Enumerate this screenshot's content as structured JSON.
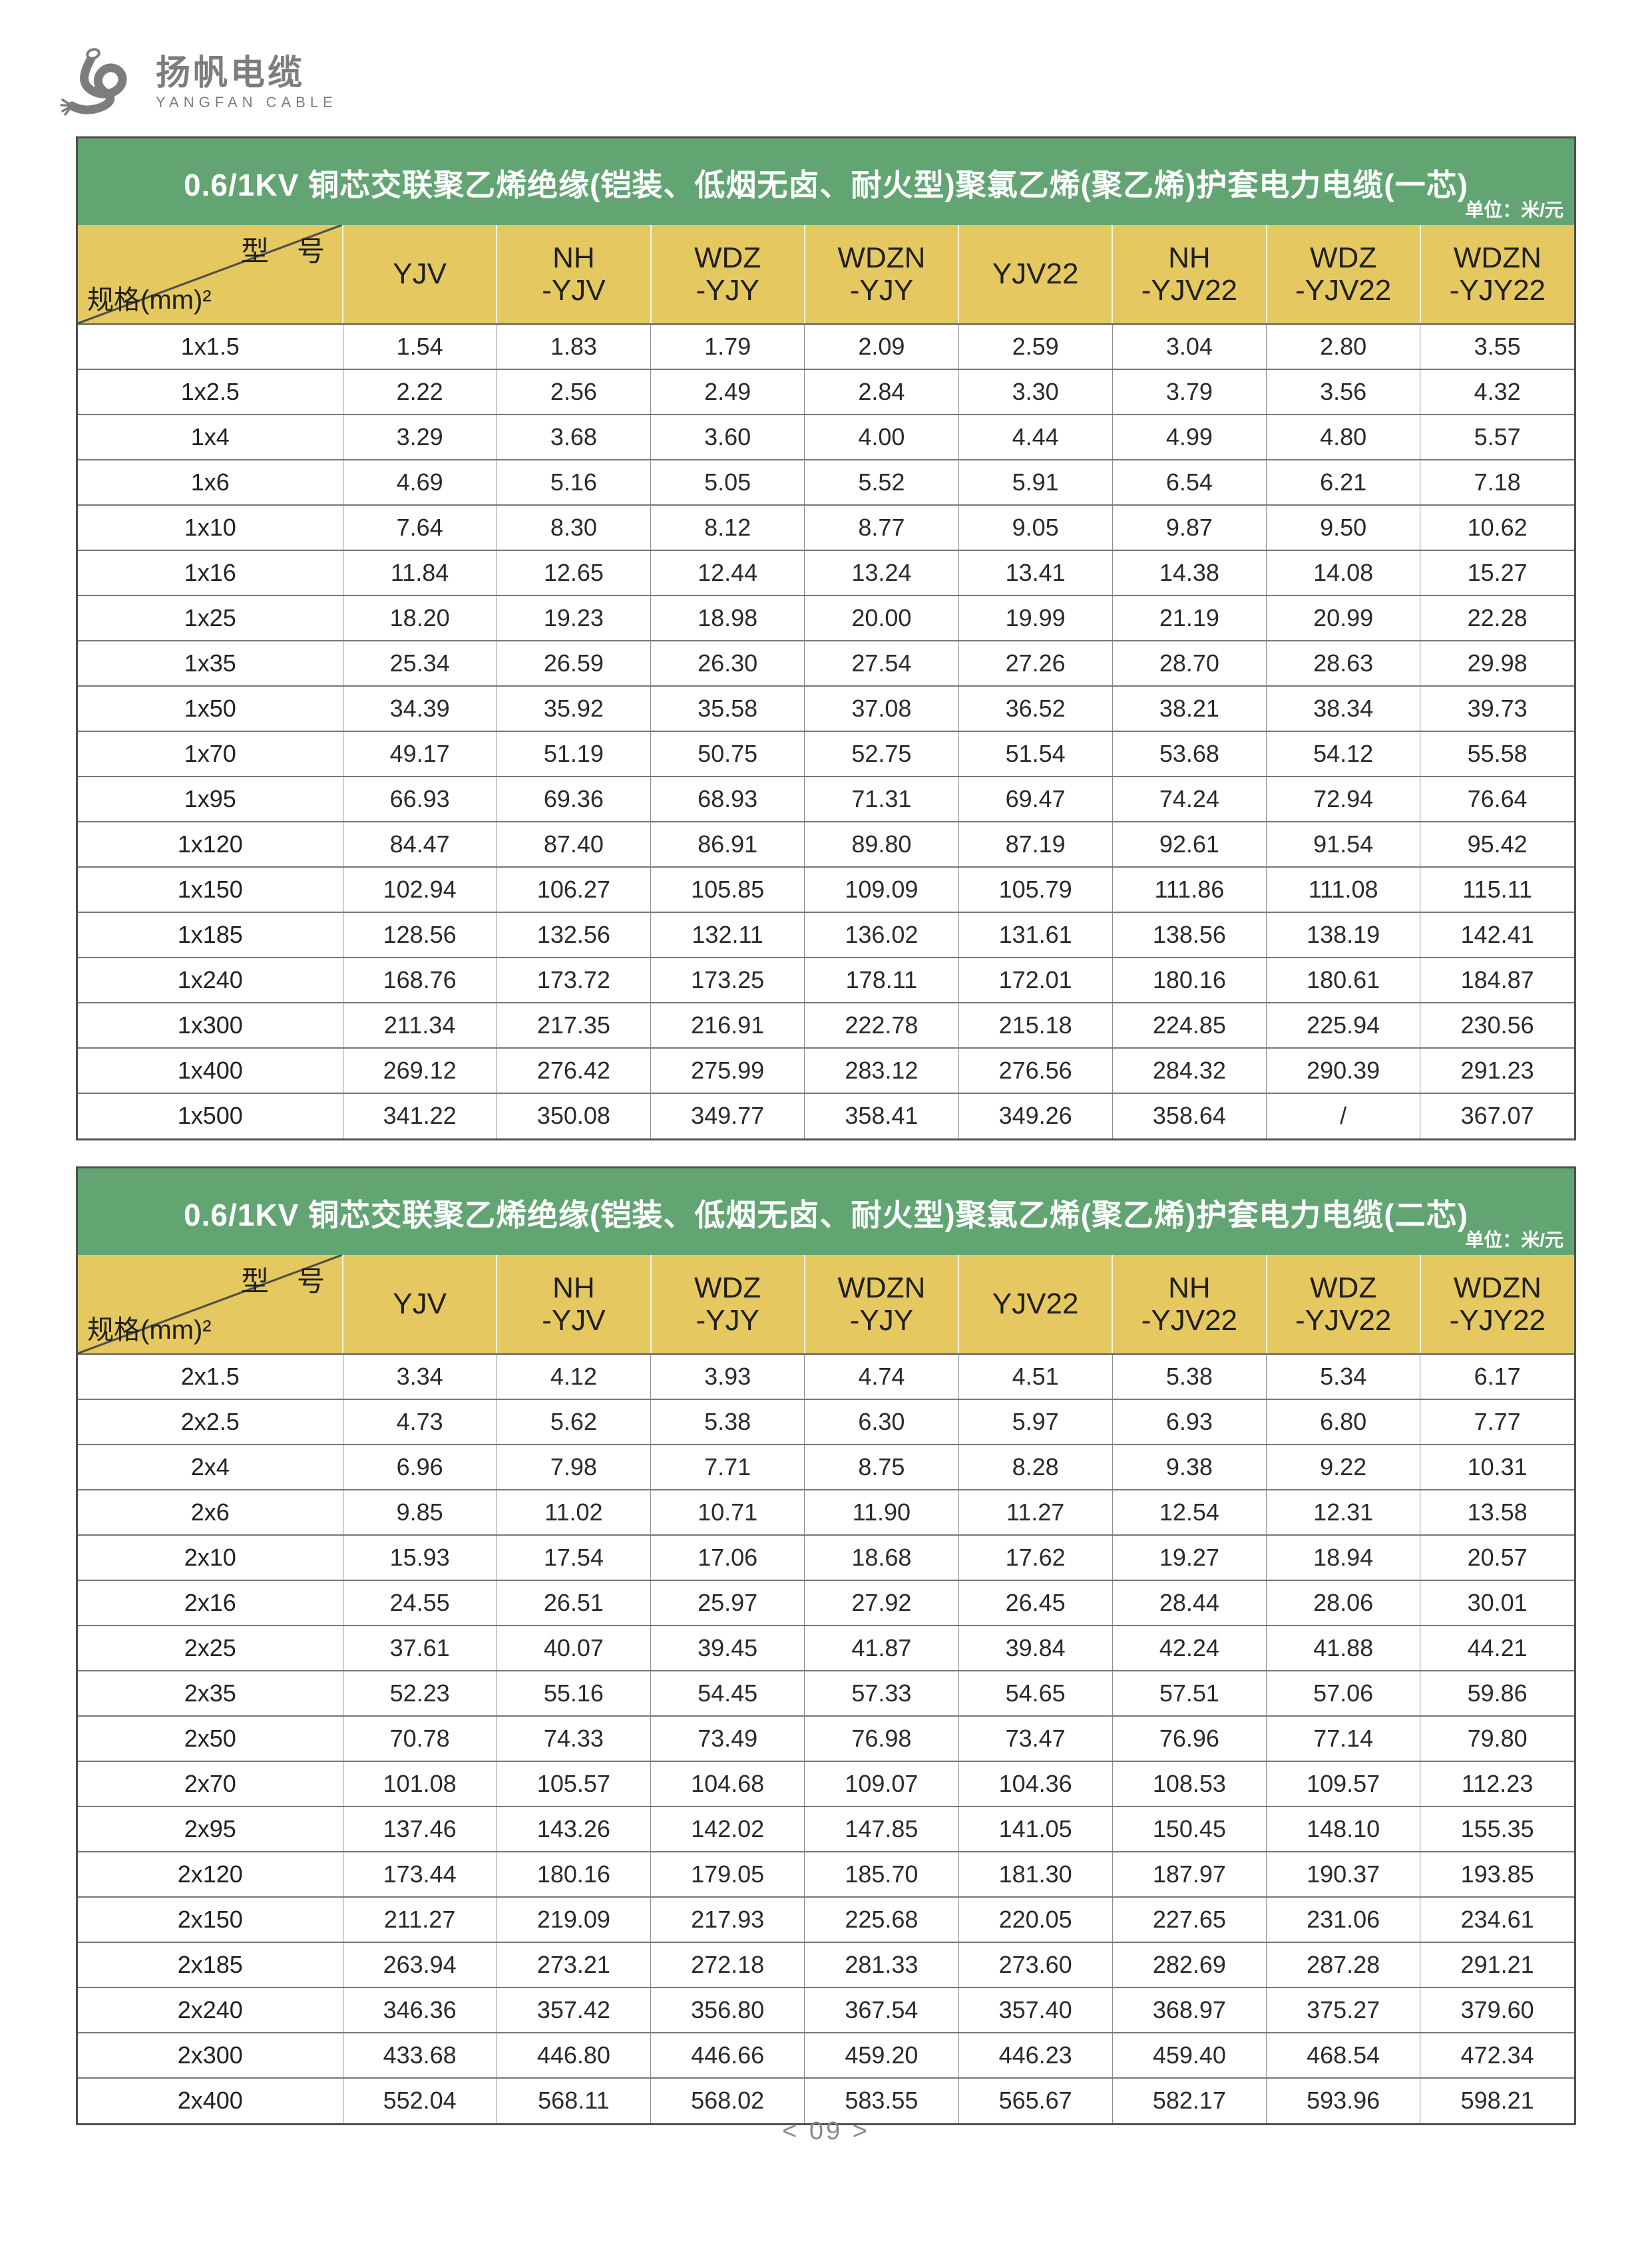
{
  "logo": {
    "brand_cn": "扬帆电缆",
    "brand_en": "YANGFAN CABLE"
  },
  "footer": {
    "page": "< 09 >"
  },
  "colors": {
    "band_green": "#62a573",
    "header_yellow": "#e5c860",
    "logo_gray": "#7d7d7d"
  },
  "tables": [
    {
      "title": "0.6/1KV 铜芯交联聚乙烯绝缘(铠装、低烟无卤、耐火型)聚氯乙烯(聚乙烯)护套电力电缆(一芯)",
      "unit": "单位：米/元",
      "corner_top": "型　号",
      "corner_bottom": "规格(mm)²",
      "columns": [
        "YJV",
        "NH\n-YJV",
        "WDZ\n-YJY",
        "WDZN\n-YJY",
        "YJV22",
        "NH\n-YJV22",
        "WDZ\n-YJV22",
        "WDZN\n-YJY22"
      ],
      "rows": [
        {
          "spec": "1x1.5",
          "values": [
            "1.54",
            "1.83",
            "1.79",
            "2.09",
            "2.59",
            "3.04",
            "2.80",
            "3.55"
          ]
        },
        {
          "spec": "1x2.5",
          "values": [
            "2.22",
            "2.56",
            "2.49",
            "2.84",
            "3.30",
            "3.79",
            "3.56",
            "4.32"
          ]
        },
        {
          "spec": "1x4",
          "values": [
            "3.29",
            "3.68",
            "3.60",
            "4.00",
            "4.44",
            "4.99",
            "4.80",
            "5.57"
          ]
        },
        {
          "spec": "1x6",
          "values": [
            "4.69",
            "5.16",
            "5.05",
            "5.52",
            "5.91",
            "6.54",
            "6.21",
            "7.18"
          ]
        },
        {
          "spec": "1x10",
          "values": [
            "7.64",
            "8.30",
            "8.12",
            "8.77",
            "9.05",
            "9.87",
            "9.50",
            "10.62"
          ]
        },
        {
          "spec": "1x16",
          "values": [
            "11.84",
            "12.65",
            "12.44",
            "13.24",
            "13.41",
            "14.38",
            "14.08",
            "15.27"
          ]
        },
        {
          "spec": "1x25",
          "values": [
            "18.20",
            "19.23",
            "18.98",
            "20.00",
            "19.99",
            "21.19",
            "20.99",
            "22.28"
          ]
        },
        {
          "spec": "1x35",
          "values": [
            "25.34",
            "26.59",
            "26.30",
            "27.54",
            "27.26",
            "28.70",
            "28.63",
            "29.98"
          ]
        },
        {
          "spec": "1x50",
          "values": [
            "34.39",
            "35.92",
            "35.58",
            "37.08",
            "36.52",
            "38.21",
            "38.34",
            "39.73"
          ]
        },
        {
          "spec": "1x70",
          "values": [
            "49.17",
            "51.19",
            "50.75",
            "52.75",
            "51.54",
            "53.68",
            "54.12",
            "55.58"
          ]
        },
        {
          "spec": "1x95",
          "values": [
            "66.93",
            "69.36",
            "68.93",
            "71.31",
            "69.47",
            "74.24",
            "72.94",
            "76.64"
          ]
        },
        {
          "spec": "1x120",
          "values": [
            "84.47",
            "87.40",
            "86.91",
            "89.80",
            "87.19",
            "92.61",
            "91.54",
            "95.42"
          ]
        },
        {
          "spec": "1x150",
          "values": [
            "102.94",
            "106.27",
            "105.85",
            "109.09",
            "105.79",
            "111.86",
            "111.08",
            "115.11"
          ]
        },
        {
          "spec": "1x185",
          "values": [
            "128.56",
            "132.56",
            "132.11",
            "136.02",
            "131.61",
            "138.56",
            "138.19",
            "142.41"
          ]
        },
        {
          "spec": "1x240",
          "values": [
            "168.76",
            "173.72",
            "173.25",
            "178.11",
            "172.01",
            "180.16",
            "180.61",
            "184.87"
          ]
        },
        {
          "spec": "1x300",
          "values": [
            "211.34",
            "217.35",
            "216.91",
            "222.78",
            "215.18",
            "224.85",
            "225.94",
            "230.56"
          ]
        },
        {
          "spec": "1x400",
          "values": [
            "269.12",
            "276.42",
            "275.99",
            "283.12",
            "276.56",
            "284.32",
            "290.39",
            "291.23"
          ]
        },
        {
          "spec": "1x500",
          "values": [
            "341.22",
            "350.08",
            "349.77",
            "358.41",
            "349.26",
            "358.64",
            "/",
            "367.07"
          ]
        }
      ]
    },
    {
      "title": "0.6/1KV 铜芯交联聚乙烯绝缘(铠装、低烟无卤、耐火型)聚氯乙烯(聚乙烯)护套电力电缆(二芯)",
      "unit": "单位：米/元",
      "corner_top": "型　号",
      "corner_bottom": "规格(mm)²",
      "columns": [
        "YJV",
        "NH\n-YJV",
        "WDZ\n-YJY",
        "WDZN\n-YJY",
        "YJV22",
        "NH\n-YJV22",
        "WDZ\n-YJV22",
        "WDZN\n-YJY22"
      ],
      "rows": [
        {
          "spec": "2x1.5",
          "values": [
            "3.34",
            "4.12",
            "3.93",
            "4.74",
            "4.51",
            "5.38",
            "5.34",
            "6.17"
          ]
        },
        {
          "spec": "2x2.5",
          "values": [
            "4.73",
            "5.62",
            "5.38",
            "6.30",
            "5.97",
            "6.93",
            "6.80",
            "7.77"
          ]
        },
        {
          "spec": "2x4",
          "values": [
            "6.96",
            "7.98",
            "7.71",
            "8.75",
            "8.28",
            "9.38",
            "9.22",
            "10.31"
          ]
        },
        {
          "spec": "2x6",
          "values": [
            "9.85",
            "11.02",
            "10.71",
            "11.90",
            "11.27",
            "12.54",
            "12.31",
            "13.58"
          ]
        },
        {
          "spec": "2x10",
          "values": [
            "15.93",
            "17.54",
            "17.06",
            "18.68",
            "17.62",
            "19.27",
            "18.94",
            "20.57"
          ]
        },
        {
          "spec": "2x16",
          "values": [
            "24.55",
            "26.51",
            "25.97",
            "27.92",
            "26.45",
            "28.44",
            "28.06",
            "30.01"
          ]
        },
        {
          "spec": "2x25",
          "values": [
            "37.61",
            "40.07",
            "39.45",
            "41.87",
            "39.84",
            "42.24",
            "41.88",
            "44.21"
          ]
        },
        {
          "spec": "2x35",
          "values": [
            "52.23",
            "55.16",
            "54.45",
            "57.33",
            "54.65",
            "57.51",
            "57.06",
            "59.86"
          ]
        },
        {
          "spec": "2x50",
          "values": [
            "70.78",
            "74.33",
            "73.49",
            "76.98",
            "73.47",
            "76.96",
            "77.14",
            "79.80"
          ]
        },
        {
          "spec": "2x70",
          "values": [
            "101.08",
            "105.57",
            "104.68",
            "109.07",
            "104.36",
            "108.53",
            "109.57",
            "112.23"
          ]
        },
        {
          "spec": "2x95",
          "values": [
            "137.46",
            "143.26",
            "142.02",
            "147.85",
            "141.05",
            "150.45",
            "148.10",
            "155.35"
          ]
        },
        {
          "spec": "2x120",
          "values": [
            "173.44",
            "180.16",
            "179.05",
            "185.70",
            "181.30",
            "187.97",
            "190.37",
            "193.85"
          ]
        },
        {
          "spec": "2x150",
          "values": [
            "211.27",
            "219.09",
            "217.93",
            "225.68",
            "220.05",
            "227.65",
            "231.06",
            "234.61"
          ]
        },
        {
          "spec": "2x185",
          "values": [
            "263.94",
            "273.21",
            "272.18",
            "281.33",
            "273.60",
            "282.69",
            "287.28",
            "291.21"
          ]
        },
        {
          "spec": "2x240",
          "values": [
            "346.36",
            "357.42",
            "356.80",
            "367.54",
            "357.40",
            "368.97",
            "375.27",
            "379.60"
          ]
        },
        {
          "spec": "2x300",
          "values": [
            "433.68",
            "446.80",
            "446.66",
            "459.20",
            "446.23",
            "459.40",
            "468.54",
            "472.34"
          ]
        },
        {
          "spec": "2x400",
          "values": [
            "552.04",
            "568.11",
            "568.02",
            "583.55",
            "565.67",
            "582.17",
            "593.96",
            "598.21"
          ]
        }
      ]
    }
  ]
}
